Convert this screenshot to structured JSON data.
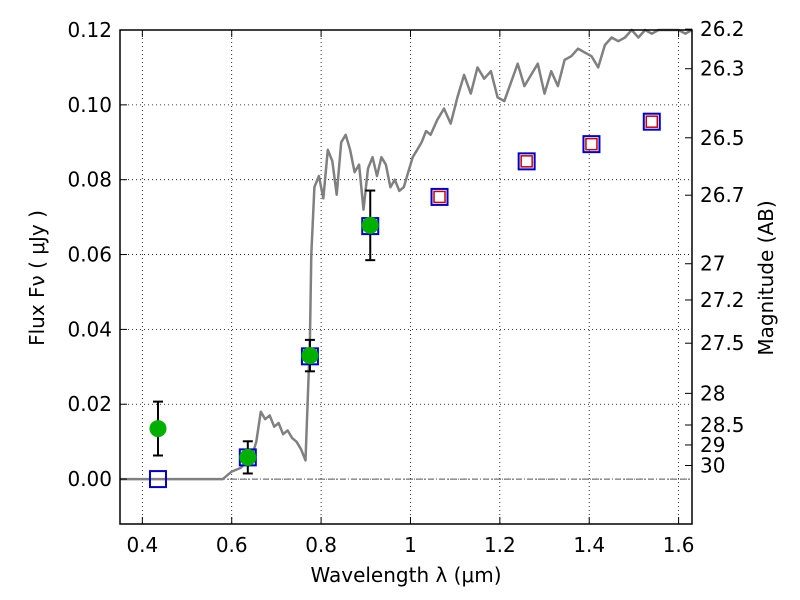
{
  "chart_data": {
    "type": "scatter",
    "title": "",
    "xlabel": "Wavelength  λ (μm)",
    "ylabel": "Flux  Fν  ( μJy )",
    "y2label": "Magnitude (AB)",
    "xlim": [
      0.35,
      1.63
    ],
    "ylim": [
      -0.012,
      0.12
    ],
    "grid": true,
    "x_ticks": [
      0.4,
      0.6,
      0.8,
      1.0,
      1.2,
      1.4,
      1.6
    ],
    "x_tick_labels": [
      "0.4",
      "0.6",
      "0.8",
      "1",
      "1.2",
      "1.4",
      "1.6"
    ],
    "y_ticks": [
      0.0,
      0.02,
      0.04,
      0.06,
      0.08,
      0.1,
      0.12
    ],
    "y_tick_labels": [
      "0.00",
      "0.02",
      "0.04",
      "0.06",
      "0.08",
      "0.10",
      "0.12"
    ],
    "mag_ticks": [
      "26.2",
      "26.3",
      "26.5",
      "26.7",
      "27",
      "27.2",
      "27.5",
      "28",
      "28.5",
      "29",
      "30"
    ],
    "model_spectrum": {
      "color": "#808080",
      "x": [
        0.35,
        0.58,
        0.6,
        0.62,
        0.635,
        0.645,
        0.655,
        0.665,
        0.675,
        0.685,
        0.695,
        0.705,
        0.715,
        0.725,
        0.735,
        0.745,
        0.755,
        0.765,
        0.775,
        0.778,
        0.785,
        0.795,
        0.805,
        0.815,
        0.825,
        0.835,
        0.845,
        0.855,
        0.865,
        0.875,
        0.885,
        0.895,
        0.905,
        0.915,
        0.925,
        0.935,
        0.945,
        0.955,
        0.965,
        0.975,
        0.985,
        0.995,
        1.005,
        1.015,
        1.025,
        1.035,
        1.045,
        1.06,
        1.075,
        1.09,
        1.105,
        1.12,
        1.135,
        1.15,
        1.165,
        1.18,
        1.195,
        1.21,
        1.225,
        1.24,
        1.255,
        1.27,
        1.285,
        1.3,
        1.315,
        1.33,
        1.345,
        1.36,
        1.375,
        1.39,
        1.405,
        1.42,
        1.435,
        1.45,
        1.465,
        1.48,
        1.495,
        1.51,
        1.525,
        1.54,
        1.555,
        1.57,
        1.585,
        1.6,
        1.615,
        1.63
      ],
      "y": [
        0.0,
        0.0,
        0.002,
        0.003,
        0.005,
        0.006,
        0.01,
        0.018,
        0.016,
        0.017,
        0.014,
        0.015,
        0.012,
        0.013,
        0.011,
        0.01,
        0.008,
        0.005,
        0.037,
        0.06,
        0.078,
        0.081,
        0.075,
        0.088,
        0.085,
        0.076,
        0.09,
        0.092,
        0.088,
        0.082,
        0.084,
        0.072,
        0.083,
        0.086,
        0.081,
        0.086,
        0.084,
        0.078,
        0.08,
        0.077,
        0.078,
        0.082,
        0.086,
        0.088,
        0.09,
        0.093,
        0.092,
        0.096,
        0.099,
        0.095,
        0.102,
        0.108,
        0.103,
        0.11,
        0.107,
        0.109,
        0.102,
        0.101,
        0.106,
        0.111,
        0.105,
        0.108,
        0.111,
        0.103,
        0.109,
        0.105,
        0.112,
        0.113,
        0.115,
        0.114,
        0.113,
        0.11,
        0.116,
        0.118,
        0.117,
        0.118,
        0.12,
        0.118,
        0.12,
        0.119,
        0.12,
        0.12,
        0.12,
        0.12,
        0.119,
        0.12
      ]
    },
    "observed_points": {
      "color": "#00b000",
      "x": [
        0.435,
        0.636,
        0.775,
        0.91
      ],
      "y": [
        0.0135,
        0.0058,
        0.033,
        0.0678
      ],
      "yerr": [
        0.0072,
        0.0043,
        0.0042,
        0.0093
      ]
    },
    "model_photometry": {
      "color": "#0000cc",
      "x": [
        0.435,
        0.636,
        0.775,
        0.91,
        1.065,
        1.26,
        1.405,
        1.54
      ],
      "y": [
        0.0,
        0.0058,
        0.0328,
        0.0676,
        0.0754,
        0.0849,
        0.0895,
        0.0955
      ]
    },
    "red_model_points": {
      "color": "#cc0000",
      "x": [
        1.065,
        1.26,
        1.405,
        1.54
      ],
      "y": [
        0.0754,
        0.0849,
        0.0895,
        0.0955
      ]
    }
  }
}
